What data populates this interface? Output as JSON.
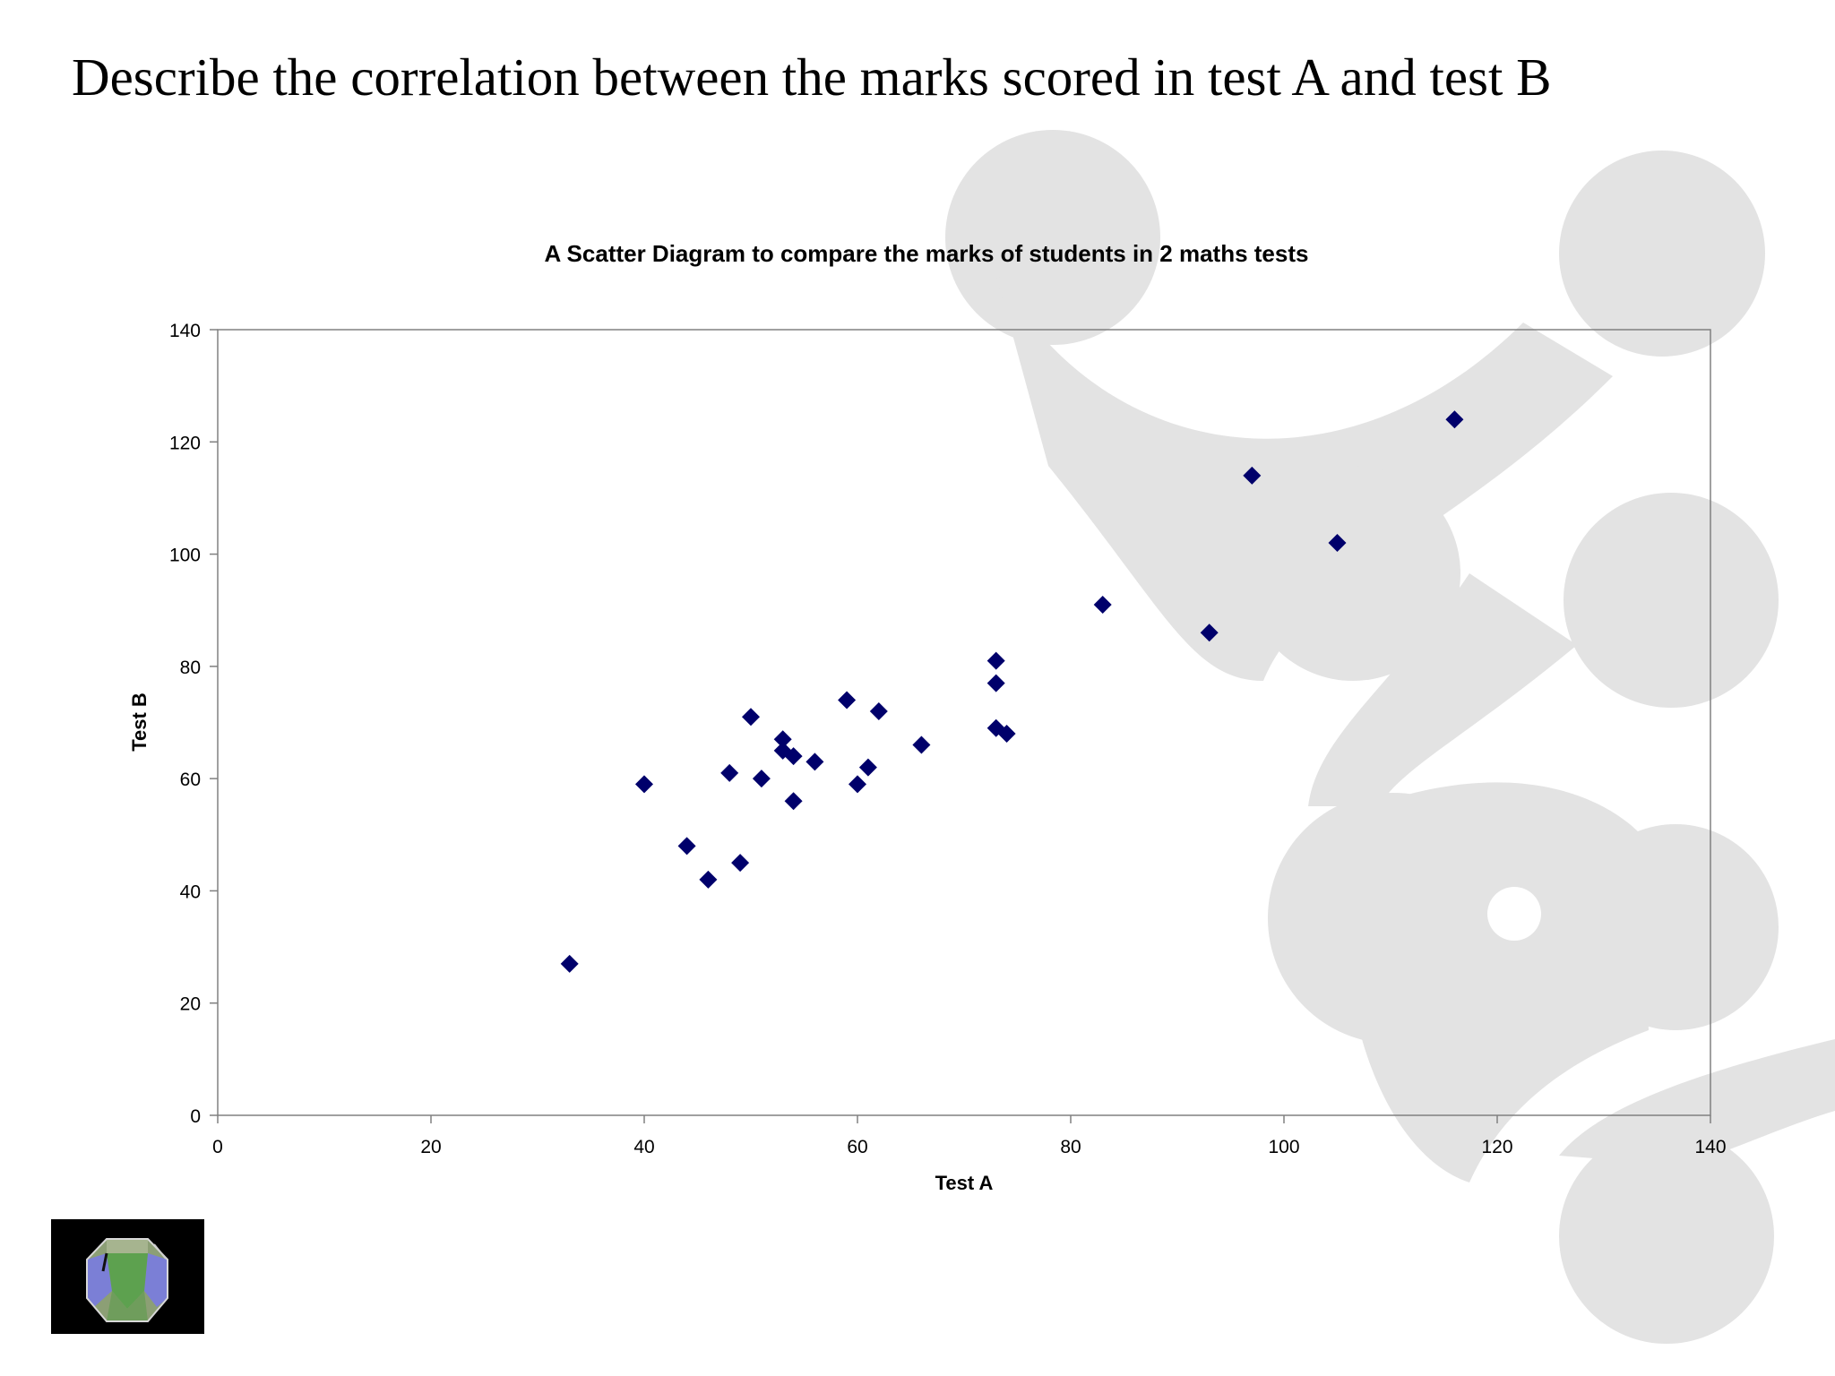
{
  "slide": {
    "question": "Describe the correlation between the marks scored in test A and test B"
  },
  "colors": {
    "marker": "#00006b",
    "axis": "#808080",
    "text": "#000000",
    "decor": "#e3e3e3"
  },
  "logo": {
    "icon": "dodecahedron-icon"
  },
  "chart_data": {
    "type": "scatter",
    "title": "A Scatter Diagram to compare the marks of students in 2 maths tests",
    "xlabel": "Test A",
    "ylabel": "Test B",
    "xlim": [
      0,
      140
    ],
    "ylim": [
      0,
      140
    ],
    "xticks": [
      "0",
      "20",
      "40",
      "60",
      "80",
      "100",
      "120",
      "140"
    ],
    "yticks": [
      "0",
      "20",
      "40",
      "60",
      "80",
      "100",
      "120",
      "140"
    ],
    "grid": false,
    "legend": false,
    "marker": "diamond",
    "series": [
      {
        "points": [
          [
            33,
            27
          ],
          [
            40,
            59
          ],
          [
            44,
            48
          ],
          [
            46,
            42
          ],
          [
            48,
            61
          ],
          [
            49,
            45
          ],
          [
            50,
            71
          ],
          [
            51,
            60
          ],
          [
            53,
            67
          ],
          [
            53,
            65
          ],
          [
            54,
            64
          ],
          [
            54,
            56
          ],
          [
            56,
            63
          ],
          [
            59,
            74
          ],
          [
            60,
            59
          ],
          [
            61,
            62
          ],
          [
            62,
            72
          ],
          [
            66,
            66
          ],
          [
            73,
            81
          ],
          [
            73,
            77
          ],
          [
            73,
            69
          ],
          [
            74,
            68
          ],
          [
            83,
            91
          ],
          [
            93,
            86
          ],
          [
            97,
            114
          ],
          [
            105,
            102
          ],
          [
            116,
            124
          ]
        ]
      }
    ]
  }
}
